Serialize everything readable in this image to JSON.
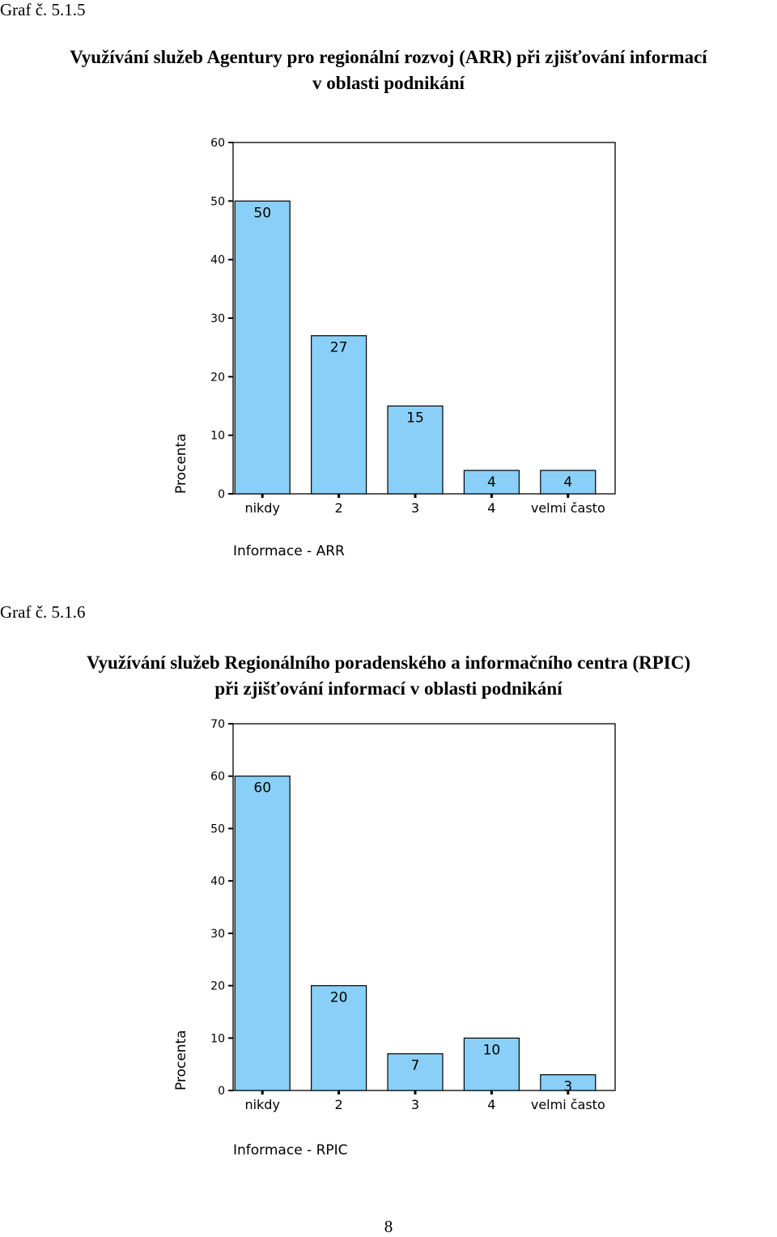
{
  "charts_meta": [
    {
      "graf_label": "Graf č. 5.1.5",
      "title_line1": "Využívání služeb Agentury pro regionální rozvoj (ARR) při zjišťování informací",
      "title_line2": "v oblasti podnikání"
    },
    {
      "graf_label": "Graf č. 5.1.6",
      "title_line1": "Využívání služeb Regionálního poradenského a informačního centra (RPIC)",
      "title_line2": "při zjišťování informací v oblasti podnikání"
    }
  ],
  "chart_data": [
    {
      "type": "bar",
      "categories": [
        "nikdy",
        "2",
        "3",
        "4",
        "velmi často"
      ],
      "values": [
        50,
        27,
        15,
        4,
        4
      ],
      "xlabel": "Informace - ARR",
      "ylabel": "Procenta",
      "ylim": [
        0,
        60
      ],
      "yticks": [
        0,
        10,
        20,
        30,
        40,
        50,
        60
      ],
      "bar_color": "#89CFF7",
      "grid": false,
      "data_labels": true
    },
    {
      "type": "bar",
      "categories": [
        "nikdy",
        "2",
        "3",
        "4",
        "velmi často"
      ],
      "values": [
        60,
        20,
        7,
        10,
        3
      ],
      "xlabel": "Informace - RPIC",
      "ylabel": "Procenta",
      "ylim": [
        0,
        70
      ],
      "yticks": [
        0,
        10,
        20,
        30,
        40,
        50,
        60,
        70
      ],
      "bar_color": "#89CFF7",
      "grid": false,
      "data_labels": true
    }
  ],
  "page_number": "8"
}
